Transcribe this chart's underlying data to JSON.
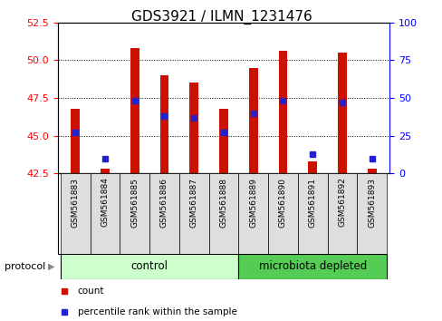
{
  "title": "GDS3921 / ILMN_1231476",
  "samples": [
    "GSM561883",
    "GSM561884",
    "GSM561885",
    "GSM561886",
    "GSM561887",
    "GSM561888",
    "GSM561889",
    "GSM561890",
    "GSM561891",
    "GSM561892",
    "GSM561893"
  ],
  "count_values": [
    46.8,
    42.8,
    50.8,
    49.0,
    48.5,
    46.8,
    49.5,
    50.6,
    43.3,
    50.5,
    42.8
  ],
  "count_base": 42.5,
  "percentile_values": [
    45.2,
    43.5,
    47.3,
    46.3,
    46.2,
    45.2,
    46.5,
    47.3,
    43.8,
    47.2,
    43.5
  ],
  "ylim_left": [
    42.5,
    52.5
  ],
  "ylim_right": [
    0,
    100
  ],
  "yticks_left": [
    42.5,
    45.0,
    47.5,
    50.0,
    52.5
  ],
  "yticks_right": [
    0,
    25,
    50,
    75,
    100
  ],
  "bar_color": "#CC1100",
  "marker_color": "#2222CC",
  "control_samples": 6,
  "control_color": "#CCFFCC",
  "microbiota_color": "#55CC55",
  "protocol_label": "protocol",
  "legend_items": [
    {
      "label": "count",
      "color": "#CC1100"
    },
    {
      "label": "percentile rank within the sample",
      "color": "#2222CC"
    }
  ],
  "background_color": "#FFFFFF",
  "bar_width": 0.3,
  "tick_label_fontsize": 8,
  "title_fontsize": 11
}
